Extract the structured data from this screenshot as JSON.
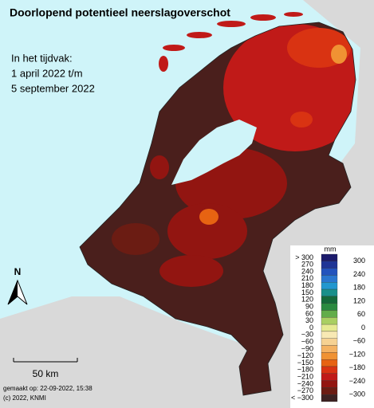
{
  "header": {
    "title": "Doorlopend potentieel neerslagoverschot",
    "period": [
      "In het tijdvak:",
      "1 april 2022 t/m",
      "5 september 2022"
    ]
  },
  "legend": {
    "unit": "mm",
    "items": [
      {
        "label": "> 300",
        "color": "#1b1a6b"
      },
      {
        "label": "270",
        "color": "#1f3596"
      },
      {
        "label": "240",
        "color": "#2353bd"
      },
      {
        "label": "210",
        "color": "#2a76cf"
      },
      {
        "label": "180",
        "color": "#2197cf"
      },
      {
        "label": "150",
        "color": "#18908a"
      },
      {
        "label": "120",
        "color": "#146a3a"
      },
      {
        "label": "90",
        "color": "#2a8a40"
      },
      {
        "label": "60",
        "color": "#62ad4a"
      },
      {
        "label": "30",
        "color": "#a9cf62"
      },
      {
        "label": "0",
        "color": "#e6ea92"
      },
      {
        "label": "−30",
        "color": "#f8e9b4"
      },
      {
        "label": "−60",
        "color": "#f6d293"
      },
      {
        "label": "−90",
        "color": "#f4b262"
      },
      {
        "label": "−120",
        "color": "#f09233"
      },
      {
        "label": "−150",
        "color": "#e76312"
      },
      {
        "label": "−180",
        "color": "#d93312"
      },
      {
        "label": "−210",
        "color": "#c01a18"
      },
      {
        "label": "−240",
        "color": "#921511"
      },
      {
        "label": "−270",
        "color": "#6b1c13"
      },
      {
        "label": "< −300",
        "color": "#3d2222"
      }
    ],
    "right_labels": [
      "300",
      "240",
      "180",
      "120",
      "60",
      "0",
      "−60",
      "−120",
      "−180",
      "−240",
      "−300"
    ]
  },
  "north": "N",
  "scale": "50 km",
  "footer": [
    "gemaakt op: 22-09-2022, 15:38",
    "(c) 2022, KNMI"
  ]
}
